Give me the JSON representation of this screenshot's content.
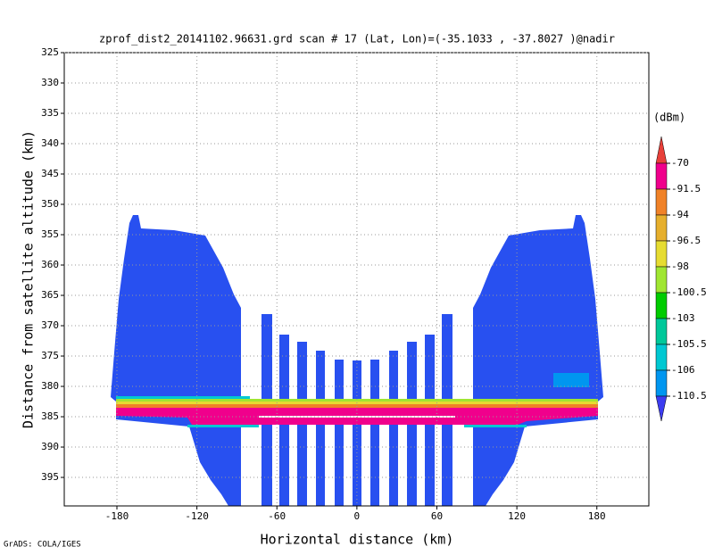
{
  "chart_data": {
    "type": "heatmap",
    "title": "zprof_dist2_20141102.96631.grd  scan # 17  (Lat, Lon)=(-35.1033 , -37.8027 )@nadir",
    "xlabel": "Horizontal distance (km)",
    "ylabel": "Distance from satellite altitude (km)",
    "xlim": [
      -219.5,
      219
    ],
    "ylim": [
      325,
      399.7
    ],
    "xticks": [
      -180,
      -120,
      -60,
      0,
      60,
      120,
      180
    ],
    "yticks": [
      325,
      330,
      335,
      340,
      345,
      350,
      355,
      360,
      365,
      370,
      375,
      380,
      385,
      390,
      395
    ],
    "y_inverted": true,
    "grid": true,
    "colorbar": {
      "unit": "(dBm)",
      "levels": [
        -70,
        -91.5,
        -94,
        -96.5,
        -98,
        -100.5,
        -103,
        -105.5,
        -106,
        -110.5
      ],
      "colors": [
        "#e8403a",
        "#f0008c",
        "#f08228",
        "#e6af2d",
        "#e6dc32",
        "#a0e632",
        "#00cc00",
        "#00c89a",
        "#00c8d2",
        "#0096f0",
        "#3c3cf0"
      ]
    },
    "footer": "GrADS: COLA/IGES"
  }
}
